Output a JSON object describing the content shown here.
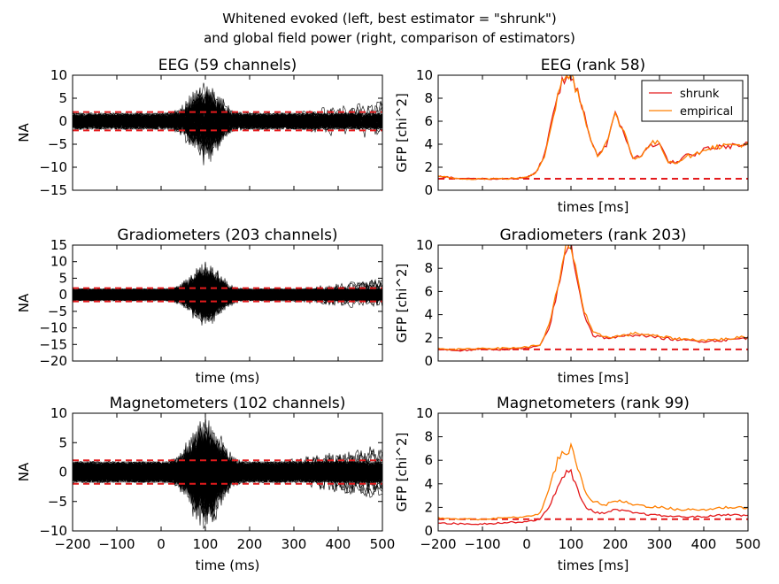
{
  "figure": {
    "suptitle_line1": "Whitened evoked (left, best estimator = \"shrunk\")",
    "suptitle_line2": "and global field power (right, comparison of estimators)"
  },
  "chart_data": [
    {
      "type": "line",
      "title": "EEG (59 channels)",
      "xlabel": "",
      "ylabel": "NA",
      "xlim": [
        -200,
        500
      ],
      "ylim": [
        -15,
        10
      ],
      "xticks": [
        -200,
        -100,
        0,
        100,
        200,
        300,
        400,
        500
      ],
      "yticks": [
        -15,
        -10,
        -5,
        0,
        5,
        10
      ],
      "show_xtick_labels": false,
      "n_channels": 59,
      "noise_amplitude": 2,
      "reference_lines": [
        2,
        -2
      ],
      "reference_color": "#e41a1c",
      "trace_color": "#000000"
    },
    {
      "type": "line",
      "title": "EEG (rank 58)",
      "xlabel": "times [ms]",
      "ylabel": "GFP [chi^2]",
      "xlim": [
        -200,
        500
      ],
      "ylim": [
        0,
        10
      ],
      "xticks": [
        -200,
        -100,
        0,
        100,
        200,
        300,
        400,
        500
      ],
      "yticks": [
        0,
        2,
        4,
        6,
        8,
        10
      ],
      "show_xtick_labels": false,
      "reference_line": 1,
      "reference_color": "#e41a1c",
      "legend_position": "upper-right",
      "x": [
        -200,
        -150,
        -100,
        -50,
        0,
        20,
        40,
        60,
        80,
        100,
        120,
        140,
        160,
        180,
        200,
        220,
        240,
        260,
        280,
        300,
        320,
        340,
        360,
        380,
        400,
        450,
        500
      ],
      "series": [
        {
          "name": "shrunk",
          "color": "#e41a1c",
          "values": [
            1.2,
            1.0,
            1.0,
            1.0,
            1.1,
            1.5,
            3.0,
            6.5,
            9.5,
            9.9,
            8.0,
            5.0,
            3.0,
            4.0,
            6.5,
            5.0,
            2.8,
            3.0,
            4.0,
            4.0,
            2.5,
            2.4,
            3.0,
            3.0,
            3.6,
            3.8,
            4.0
          ]
        },
        {
          "name": "empirical",
          "color": "#ff7f00",
          "values": [
            1.2,
            1.0,
            1.0,
            1.0,
            1.1,
            1.5,
            3.0,
            6.5,
            9.6,
            10.0,
            8.1,
            5.0,
            3.0,
            4.1,
            6.5,
            5.1,
            2.8,
            3.0,
            4.1,
            4.1,
            2.5,
            2.4,
            3.0,
            3.0,
            3.6,
            3.9,
            4.0
          ]
        }
      ]
    },
    {
      "type": "line",
      "title": "Gradiometers (203 channels)",
      "xlabel": "time (ms)",
      "ylabel": "NA",
      "xlim": [
        -200,
        500
      ],
      "ylim": [
        -20,
        15
      ],
      "xticks": [
        -200,
        -100,
        0,
        100,
        200,
        300,
        400,
        500
      ],
      "yticks": [
        -20,
        -15,
        -10,
        -5,
        0,
        5,
        10,
        15
      ],
      "show_xtick_labels": false,
      "n_channels": 203,
      "noise_amplitude": 2,
      "reference_lines": [
        2,
        -2
      ],
      "reference_color": "#e41a1c",
      "trace_color": "#000000"
    },
    {
      "type": "line",
      "title": "Gradiometers (rank 203)",
      "xlabel": "times [ms]",
      "ylabel": "GFP [chi^2]",
      "xlim": [
        -200,
        500
      ],
      "ylim": [
        0,
        10
      ],
      "xticks": [
        -200,
        -100,
        0,
        100,
        200,
        300,
        400,
        500
      ],
      "yticks": [
        0,
        2,
        4,
        6,
        8,
        10
      ],
      "show_xtick_labels": false,
      "reference_line": 1,
      "reference_color": "#e41a1c",
      "x": [
        -200,
        -150,
        -100,
        -50,
        0,
        30,
        50,
        70,
        90,
        100,
        110,
        130,
        150,
        180,
        200,
        250,
        300,
        350,
        400,
        450,
        500
      ],
      "series": [
        {
          "name": "shrunk",
          "color": "#e41a1c",
          "values": [
            1.0,
            0.9,
            1.0,
            1.0,
            1.1,
            1.3,
            2.8,
            6.0,
            9.8,
            10.0,
            8.0,
            4.0,
            2.2,
            2.0,
            2.0,
            2.3,
            2.0,
            1.8,
            1.7,
            1.8,
            2.0
          ]
        },
        {
          "name": "empirical",
          "color": "#ff7f00",
          "values": [
            1.1,
            1.0,
            1.1,
            1.1,
            1.2,
            1.4,
            3.0,
            6.2,
            10.0,
            10.0,
            8.2,
            4.2,
            2.4,
            2.1,
            2.1,
            2.4,
            2.1,
            1.9,
            1.8,
            1.9,
            2.1
          ]
        }
      ]
    },
    {
      "type": "line",
      "title": "Magnetometers (102 channels)",
      "xlabel": "time (ms)",
      "ylabel": "NA",
      "xlim": [
        -200,
        500
      ],
      "ylim": [
        -10,
        10
      ],
      "xticks": [
        -200,
        -100,
        0,
        100,
        200,
        300,
        400,
        500
      ],
      "yticks": [
        -10,
        -5,
        0,
        5,
        10
      ],
      "show_xtick_labels": true,
      "n_channels": 102,
      "noise_amplitude": 2,
      "reference_lines": [
        2,
        -2
      ],
      "reference_color": "#e41a1c",
      "trace_color": "#000000"
    },
    {
      "type": "line",
      "title": "Magnetometers (rank 99)",
      "xlabel": "times [ms]",
      "ylabel": "GFP [chi^2]",
      "xlim": [
        -200,
        500
      ],
      "ylim": [
        0,
        10
      ],
      "xticks": [
        -200,
        -100,
        0,
        100,
        200,
        300,
        400,
        500
      ],
      "yticks": [
        0,
        2,
        4,
        6,
        8,
        10
      ],
      "show_xtick_labels": true,
      "reference_line": 1,
      "reference_color": "#e41a1c",
      "x": [
        -200,
        -150,
        -100,
        -50,
        0,
        30,
        50,
        70,
        90,
        100,
        110,
        130,
        150,
        180,
        200,
        250,
        300,
        350,
        400,
        450,
        500
      ],
      "series": [
        {
          "name": "shrunk",
          "color": "#e41a1c",
          "values": [
            0.7,
            0.6,
            0.6,
            0.7,
            0.8,
            1.0,
            2.0,
            3.8,
            4.9,
            5.0,
            4.0,
            2.2,
            1.6,
            1.5,
            1.8,
            1.5,
            1.3,
            1.2,
            1.2,
            1.4,
            1.3
          ]
        },
        {
          "name": "empirical",
          "color": "#ff7f00",
          "values": [
            1.1,
            1.0,
            1.0,
            1.1,
            1.2,
            1.5,
            3.5,
            6.0,
            6.8,
            7.0,
            6.0,
            3.5,
            2.5,
            2.2,
            2.6,
            2.2,
            2.0,
            1.8,
            1.8,
            2.0,
            2.0
          ]
        }
      ]
    }
  ]
}
